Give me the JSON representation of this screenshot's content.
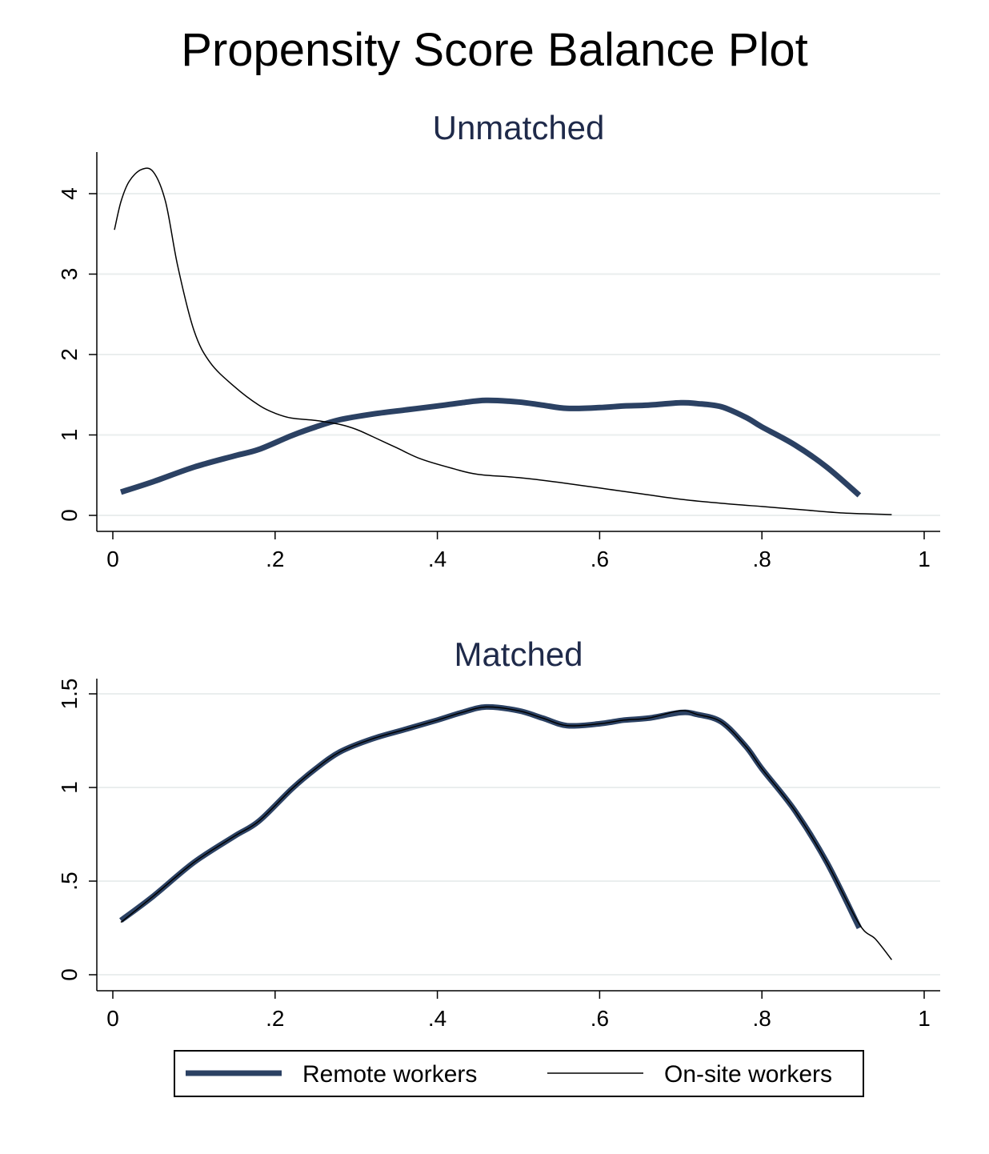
{
  "title": "Propensity Score Balance Plot",
  "colors": {
    "remote": "#2b4163",
    "onsite": "#000000",
    "grid": "#eaeeee",
    "panel_title": "#1f2a4a"
  },
  "legend": {
    "remote": "Remote workers",
    "onsite": "On-site workers"
  },
  "chart_data": [
    {
      "type": "line",
      "title": "Unmatched",
      "xlim": [
        0,
        1
      ],
      "ylim": [
        0,
        4.2
      ],
      "x_ticks": [
        0,
        0.2,
        0.4,
        0.6,
        0.8,
        1
      ],
      "x_tick_labels": [
        "0",
        ".2",
        ".4",
        ".6",
        ".8",
        "1"
      ],
      "y_ticks": [
        0,
        1,
        2,
        3,
        4
      ],
      "y_tick_labels": [
        "0",
        "1",
        "2",
        "3",
        "4"
      ],
      "grid": true,
      "series": [
        {
          "name": "Remote workers",
          "key": "remote",
          "points": [
            [
              0.01,
              0.29
            ],
            [
              0.05,
              0.42
            ],
            [
              0.1,
              0.6
            ],
            [
              0.15,
              0.74
            ],
            [
              0.18,
              0.82
            ],
            [
              0.22,
              0.99
            ],
            [
              0.25,
              1.1
            ],
            [
              0.28,
              1.19
            ],
            [
              0.32,
              1.26
            ],
            [
              0.36,
              1.31
            ],
            [
              0.4,
              1.36
            ],
            [
              0.43,
              1.4
            ],
            [
              0.46,
              1.43
            ],
            [
              0.5,
              1.41
            ],
            [
              0.53,
              1.37
            ],
            [
              0.56,
              1.33
            ],
            [
              0.6,
              1.34
            ],
            [
              0.63,
              1.36
            ],
            [
              0.66,
              1.37
            ],
            [
              0.7,
              1.4
            ],
            [
              0.72,
              1.39
            ],
            [
              0.75,
              1.35
            ],
            [
              0.78,
              1.22
            ],
            [
              0.8,
              1.1
            ],
            [
              0.84,
              0.88
            ],
            [
              0.88,
              0.6
            ],
            [
              0.92,
              0.25
            ]
          ]
        },
        {
          "name": "On-site workers",
          "key": "onsite",
          "points": [
            [
              0.002,
              3.55
            ],
            [
              0.01,
              3.9
            ],
            [
              0.02,
              4.15
            ],
            [
              0.035,
              4.3
            ],
            [
              0.05,
              4.27
            ],
            [
              0.065,
              3.9
            ],
            [
              0.08,
              3.1
            ],
            [
              0.1,
              2.3
            ],
            [
              0.12,
              1.9
            ],
            [
              0.15,
              1.6
            ],
            [
              0.18,
              1.37
            ],
            [
              0.2,
              1.27
            ],
            [
              0.22,
              1.21
            ],
            [
              0.25,
              1.18
            ],
            [
              0.28,
              1.13
            ],
            [
              0.3,
              1.07
            ],
            [
              0.32,
              0.98
            ],
            [
              0.35,
              0.84
            ],
            [
              0.38,
              0.7
            ],
            [
              0.42,
              0.58
            ],
            [
              0.45,
              0.51
            ],
            [
              0.5,
              0.47
            ],
            [
              0.55,
              0.41
            ],
            [
              0.6,
              0.34
            ],
            [
              0.65,
              0.27
            ],
            [
              0.7,
              0.2
            ],
            [
              0.75,
              0.15
            ],
            [
              0.8,
              0.11
            ],
            [
              0.85,
              0.07
            ],
            [
              0.9,
              0.03
            ],
            [
              0.96,
              0.01
            ]
          ]
        }
      ]
    },
    {
      "type": "line",
      "title": "Matched",
      "xlim": [
        0,
        1
      ],
      "ylim": [
        0,
        1.5
      ],
      "x_ticks": [
        0,
        0.2,
        0.4,
        0.6,
        0.8,
        1
      ],
      "x_tick_labels": [
        "0",
        ".2",
        ".4",
        ".6",
        ".8",
        "1"
      ],
      "y_ticks": [
        0,
        0.5,
        1,
        1.5
      ],
      "y_tick_labels": [
        "0",
        ".5",
        "1",
        "1.5"
      ],
      "grid": true,
      "series": [
        {
          "name": "Remote workers",
          "key": "remote",
          "points": [
            [
              0.01,
              0.29
            ],
            [
              0.05,
              0.42
            ],
            [
              0.1,
              0.6
            ],
            [
              0.15,
              0.74
            ],
            [
              0.18,
              0.82
            ],
            [
              0.22,
              0.99
            ],
            [
              0.25,
              1.1
            ],
            [
              0.28,
              1.19
            ],
            [
              0.32,
              1.26
            ],
            [
              0.36,
              1.31
            ],
            [
              0.4,
              1.36
            ],
            [
              0.43,
              1.4
            ],
            [
              0.46,
              1.43
            ],
            [
              0.5,
              1.41
            ],
            [
              0.53,
              1.37
            ],
            [
              0.56,
              1.33
            ],
            [
              0.6,
              1.34
            ],
            [
              0.63,
              1.36
            ],
            [
              0.66,
              1.37
            ],
            [
              0.7,
              1.4
            ],
            [
              0.72,
              1.39
            ],
            [
              0.75,
              1.35
            ],
            [
              0.78,
              1.22
            ],
            [
              0.8,
              1.1
            ],
            [
              0.84,
              0.88
            ],
            [
              0.88,
              0.6
            ],
            [
              0.92,
              0.25
            ]
          ]
        },
        {
          "name": "On-site workers",
          "key": "onsite",
          "points": [
            [
              0.01,
              0.28
            ],
            [
              0.05,
              0.42
            ],
            [
              0.1,
              0.6
            ],
            [
              0.15,
              0.74
            ],
            [
              0.18,
              0.82
            ],
            [
              0.22,
              0.99
            ],
            [
              0.25,
              1.1
            ],
            [
              0.28,
              1.19
            ],
            [
              0.32,
              1.26
            ],
            [
              0.36,
              1.31
            ],
            [
              0.4,
              1.36
            ],
            [
              0.43,
              1.4
            ],
            [
              0.46,
              1.43
            ],
            [
              0.5,
              1.41
            ],
            [
              0.53,
              1.37
            ],
            [
              0.56,
              1.33
            ],
            [
              0.6,
              1.34
            ],
            [
              0.63,
              1.36
            ],
            [
              0.66,
              1.37
            ],
            [
              0.7,
              1.41
            ],
            [
              0.72,
              1.39
            ],
            [
              0.75,
              1.35
            ],
            [
              0.78,
              1.22
            ],
            [
              0.8,
              1.1
            ],
            [
              0.84,
              0.88
            ],
            [
              0.88,
              0.6
            ],
            [
              0.92,
              0.27
            ],
            [
              0.94,
              0.19
            ],
            [
              0.96,
              0.08
            ]
          ]
        }
      ]
    }
  ]
}
